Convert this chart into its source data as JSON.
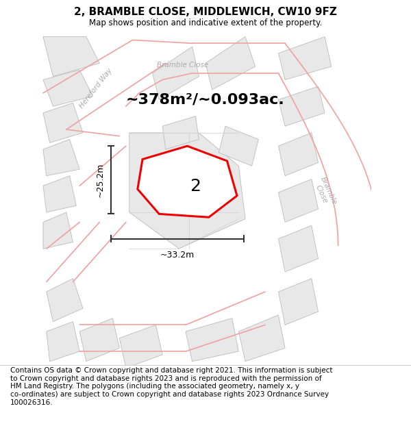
{
  "title": "2, BRAMBLE CLOSE, MIDDLEWICH, CW10 9FZ",
  "subtitle": "Map shows position and indicative extent of the property.",
  "area_text": "~378m²/~0.093ac.",
  "width_label": "~33.2m",
  "height_label": "~25.2m",
  "plot_number": "2",
  "footer_text": "Contains OS data © Crown copyright and database right 2021. This information is subject to Crown copyright and database rights 2023 and is reproduced with the permission of HM Land Registry. The polygons (including the associated geometry, namely x, y co-ordinates) are subject to Crown copyright and database rights 2023 Ordnance Survey 100026316.",
  "bg_color": "#ffffff",
  "parcel_fill": "#e8e8e8",
  "parcel_edge": "#bbbbbb",
  "road_line_color": "#f0a0a0",
  "plot_edge_color": "#ee0000",
  "plot_fill_color": "#ffffff",
  "dim_line_color": "#333333",
  "road_label_color": "#aaaaaa",
  "title_fontsize": 11,
  "subtitle_fontsize": 8.5,
  "area_fontsize": 16,
  "footer_fontsize": 7.5
}
